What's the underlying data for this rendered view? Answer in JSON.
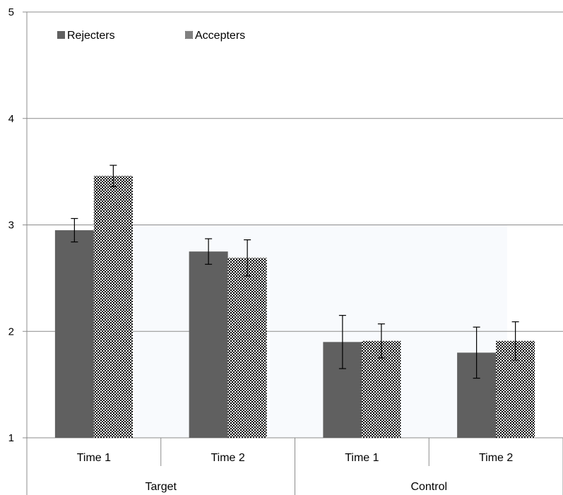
{
  "chart_data": {
    "type": "bar",
    "title": "",
    "xlabel": "",
    "ylabel": "",
    "ylim": [
      1,
      5
    ],
    "yticks": [
      1,
      2,
      3,
      4,
      5
    ],
    "grid": true,
    "legend_position": "top-left",
    "groups": [
      {
        "label": "Target",
        "categories": [
          "Time 1",
          "Time 2"
        ]
      },
      {
        "label": "Control",
        "categories": [
          "Time 1",
          "Time 2"
        ]
      }
    ],
    "categories": [
      "Time 1",
      "Time 2",
      "Time 1",
      "Time 2"
    ],
    "series": [
      {
        "name": "Rejecters",
        "color": "#606060",
        "pattern": "solid",
        "values": [
          2.95,
          2.75,
          1.9,
          1.8
        ],
        "error": [
          0.11,
          0.12,
          0.25,
          0.24
        ]
      },
      {
        "name": "Accepters",
        "color": "#000000",
        "pattern": "checker",
        "values": [
          3.46,
          2.69,
          1.91,
          1.91
        ],
        "error": [
          0.1,
          0.17,
          0.16,
          0.18
        ]
      }
    ]
  }
}
